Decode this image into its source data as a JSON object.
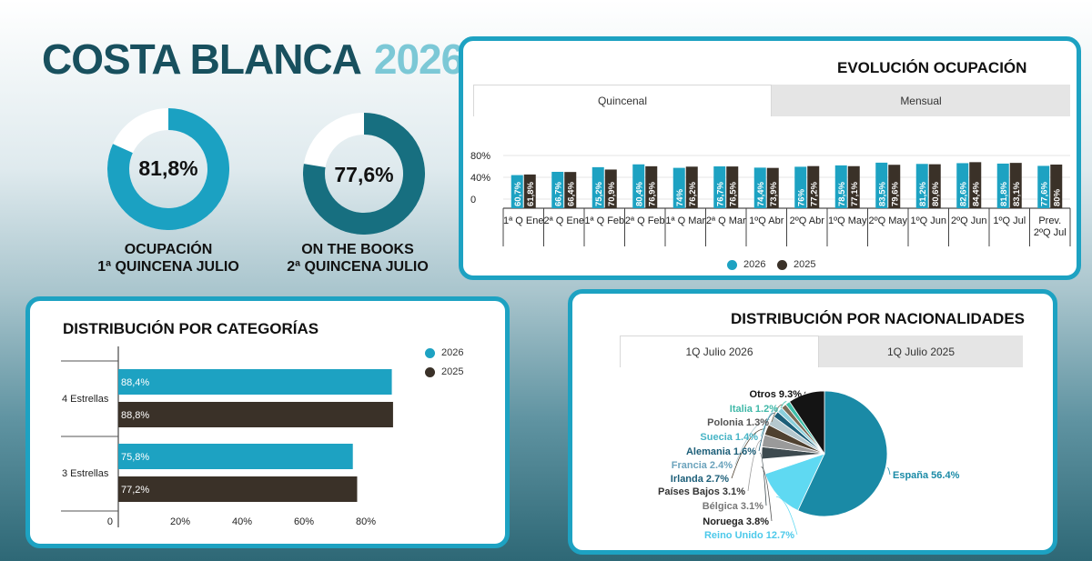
{
  "header": {
    "title_main": "COSTA BLANCA",
    "title_year": "2026"
  },
  "kpis": [
    {
      "value_text": "81,8%",
      "value": 81.8,
      "label_line1": "OCUPACIÓN",
      "label_line2": "1ª QUINCENA JULIO",
      "color": "#1ba1c2",
      "track": "#ffffff"
    },
    {
      "value_text": "77,6%",
      "value": 77.6,
      "label_line1": "ON THE BOOKS",
      "label_line2": "2ª QUINCENA JULIO",
      "color": "#176f80",
      "track": "#ffffff"
    }
  ],
  "colors": {
    "series_2026": "#1da2c2",
    "series_2025": "#3a3128",
    "card_border": "#1da2c2"
  },
  "evolucion": {
    "title": "EVOLUCIÓN OCUPACIÓN",
    "tabs": [
      {
        "label": "Quincenal",
        "active": true
      },
      {
        "label": "Mensual",
        "active": false
      }
    ],
    "legend": [
      "2026",
      "2025"
    ],
    "chart_data": {
      "type": "bar",
      "y_ticks": [
        "80%",
        "40%",
        "0"
      ],
      "ylim": [
        0,
        100
      ],
      "categories": [
        [
          "1ª Q Ene"
        ],
        [
          "2ª Q Ene"
        ],
        [
          "1ª Q Feb"
        ],
        [
          "2ª Q Feb"
        ],
        [
          "1ª Q Mar"
        ],
        [
          "2ª Q Mar"
        ],
        [
          "1ºQ Abr"
        ],
        [
          "2ºQ Abr"
        ],
        [
          "1ºQ May"
        ],
        [
          "2ºQ May"
        ],
        [
          "1ºQ Jun"
        ],
        [
          "2ºQ Jun"
        ],
        [
          "1ºQ Jul"
        ],
        [
          "Prev.",
          "2ºQ Jul"
        ]
      ],
      "series": [
        {
          "name": "2026",
          "values": [
            60.7,
            66.7,
            75.2,
            80.4,
            74,
            76.7,
            74.4,
            76,
            78.5,
            83.5,
            81.2,
            82.6,
            81.8,
            77.6
          ],
          "labels": [
            "60,7%",
            "66,7%",
            "75,2%",
            "80,4%",
            "74%",
            "76,7%",
            "74,4%",
            "76%",
            "78,5%",
            "83,5%",
            "81,2%",
            "82,6%",
            "81,8%",
            "77,6%"
          ]
        },
        {
          "name": "2025",
          "values": [
            61.8,
            66.4,
            70.9,
            76.9,
            76.2,
            76.5,
            73.9,
            77.2,
            77.1,
            79.6,
            80.6,
            84.4,
            83.1,
            80
          ],
          "labels": [
            "61,8%",
            "66,4%",
            "70,9%",
            "76,9%",
            "76,2%",
            "76,5%",
            "73,9%",
            "77,2%",
            "77,1%",
            "79,6%",
            "80,6%",
            "84,4%",
            "83,1%",
            "80%"
          ]
        }
      ]
    }
  },
  "categorias": {
    "title": "DISTRIBUCIÓN POR CATEGORÍAS",
    "legend": [
      "2026",
      "2025"
    ],
    "chart_data": {
      "type": "bar",
      "orientation": "horizontal",
      "categories": [
        "4 Estrellas",
        "3 Estrellas"
      ],
      "xlim": [
        0,
        100
      ],
      "x_ticks": [
        "0",
        "20%",
        "40%",
        "60%",
        "80%"
      ],
      "series": [
        {
          "name": "2026",
          "values": [
            88.4,
            75.8
          ],
          "labels": [
            "88,4%",
            "75,8%"
          ]
        },
        {
          "name": "2025",
          "values": [
            88.8,
            77.2
          ],
          "labels": [
            "88,8%",
            "77,2%"
          ]
        }
      ]
    }
  },
  "nacionalidades": {
    "title": "DISTRIBUCIÓN POR NACIONALIDADES",
    "tabs": [
      {
        "label": "1Q Julio 2026",
        "active": true
      },
      {
        "label": "1Q Julio 2025",
        "active": false
      }
    ],
    "chart_data": {
      "type": "pie",
      "slices": [
        {
          "label": "España",
          "value": 56.4,
          "text": "España 56.4%",
          "color": "#1a8aa6",
          "label_color": "#1a8aa6"
        },
        {
          "label": "Reino Unido",
          "value": 12.7,
          "text": "Reino Unido 12.7%",
          "color": "#5fd9f2",
          "label_color": "#4cc9ea"
        },
        {
          "label": "Noruega",
          "value": 3.8,
          "text": "Noruega 3.8%",
          "color": "#ffffff",
          "label_color": "#222222"
        },
        {
          "label": "Bélgica",
          "value": 3.1,
          "text": "Bélgica 3.1%",
          "color": "#3d4a4f",
          "label_color": "#777777"
        },
        {
          "label": "Países Bajos",
          "value": 3.1,
          "text": "Países Bajos 3.1%",
          "color": "#9a9a9a",
          "label_color": "#333333"
        },
        {
          "label": "Irlanda",
          "value": 2.7,
          "text": "Irlanda 2.7%",
          "color": "#4f4130",
          "label_color": "#1c5e78"
        },
        {
          "label": "Francia",
          "value": 2.4,
          "text": "Francia 2.4%",
          "color": "#b5c8ce",
          "label_color": "#6ba3bc"
        },
        {
          "label": "Alemania",
          "value": 1.6,
          "text": "Alemania 1.6%",
          "color": "#1c5e78",
          "label_color": "#1c5e78"
        },
        {
          "label": "Suecia",
          "value": 1.4,
          "text": "Suecia 1.4%",
          "color": "#8bd0dc",
          "label_color": "#47b4c6"
        },
        {
          "label": "Polonia",
          "value": 1.3,
          "text": "Polonia 1.3%",
          "color": "#7b6b57",
          "label_color": "#555555"
        },
        {
          "label": "Italia",
          "value": 1.2,
          "text": "Italia 1.2%",
          "color": "#3fbfaa",
          "label_color": "#40b8a8"
        },
        {
          "label": "Otros",
          "value": 9.3,
          "text": "Otros 9.3%",
          "color": "#141414",
          "label_color": "#111111"
        }
      ]
    }
  }
}
